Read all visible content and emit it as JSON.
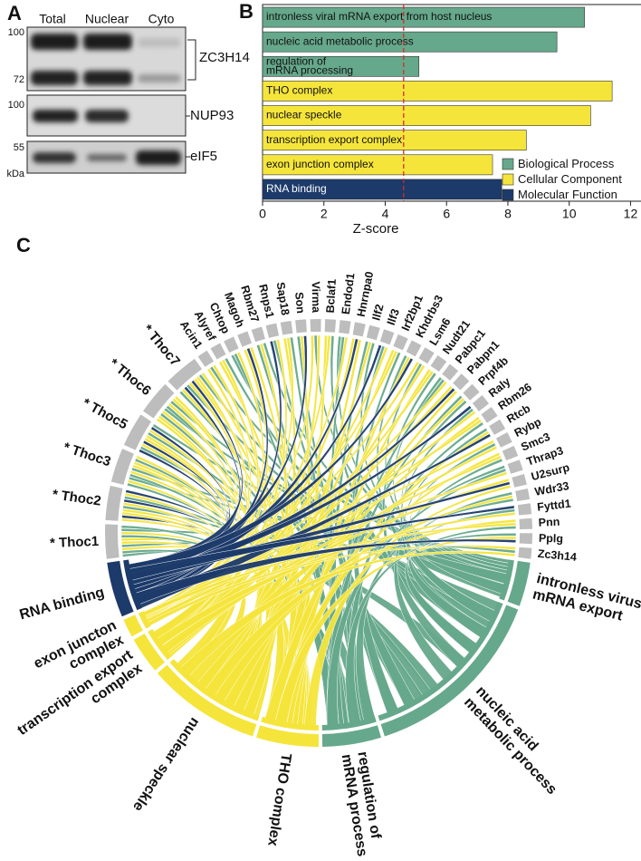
{
  "panel_a": {
    "label": "A",
    "columns": [
      "Total",
      "Nuclear",
      "Cyto"
    ],
    "markers": [
      "100",
      "72",
      "100",
      "55",
      "kDa"
    ],
    "proteins": [
      "ZC3H14",
      "NUP93",
      "eIF5"
    ]
  },
  "chart_data": {
    "type": "barh",
    "label": "B",
    "categories": [
      "intronless viral mRNA export from host nucleus",
      "nucleic acid metabolic process",
      "regulation of mRNA processing",
      "THO complex",
      "nuclear speckle",
      "transcription export complex",
      "exon junction complex",
      "RNA binding"
    ],
    "series": [
      {
        "name": "Biological Process",
        "color": "#66a88b",
        "values": [
          10.5,
          9.6,
          5.1,
          null,
          null,
          null,
          null,
          null
        ]
      },
      {
        "name": "Cellular Component",
        "color": "#f5e53b",
        "values": [
          null,
          null,
          null,
          11.4,
          10.7,
          8.6,
          7.5,
          null
        ]
      },
      {
        "name": "Molecular Function",
        "color": "#1c3a6a",
        "values": [
          null,
          null,
          null,
          null,
          null,
          null,
          null,
          7.8
        ]
      }
    ],
    "threshold": 4.6,
    "threshold_color": "#d62a2a",
    "xlabel": "Z-score",
    "xlim": [
      0,
      12.4
    ],
    "xticks": [
      0,
      2,
      4,
      6,
      8,
      10,
      12
    ],
    "legend": "lower right"
  },
  "panel_c": {
    "label": "C",
    "gene_color": "#bdbdbd",
    "genes": [
      "* Thoc1",
      "* Thoc2",
      "* Thoc3",
      "* Thoc5",
      "* Thoc6",
      "* Thoc7",
      "Acin1",
      "Alyref",
      "Chtop",
      "Magoh",
      "Rbm27",
      "Rnps1",
      "Sap18",
      "Son",
      "Virma",
      "Bclaf1",
      "Endod1",
      "Hnrnpa0",
      "Ilf2",
      "Ilf3",
      "Irf2bp1",
      "Khdrbs3",
      "Lsm6",
      "Nudt21",
      "Pabpc1",
      "Pabpn1",
      "Prpf4b",
      "Raly",
      "Rbm26",
      "Rtcb",
      "Rybp",
      "Smc3",
      "Thrap3",
      "U2surp",
      "Wdr33",
      "Fyttd1",
      "Pnn",
      "Pplg",
      "Zc3h14"
    ],
    "terms": [
      "intronless virus mRNA export",
      "nucleic acid metabolic process",
      "regulation of mRNA processing",
      "THO complex",
      "nuclear speckle",
      "transcription export complex",
      "exon juncton complex",
      "RNA binding"
    ]
  }
}
